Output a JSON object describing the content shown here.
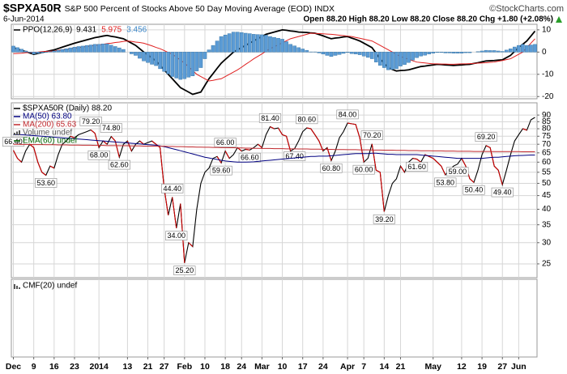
{
  "header": {
    "symbol": "$SPXA50R",
    "description": "S&P 500 Percent of Stocks Above 50 Day Moving Average (EOD) INDX",
    "source": "©StockCharts.com",
    "date": "6-Jun-2014",
    "quote": "Open 88.20 High 88.20 Low 88.20 Close 88.20 Chg +1.80 (+2.08%)"
  },
  "chart_data": [
    {
      "type": "line",
      "title": "PPO(12,26,9)",
      "ylim": [
        -21,
        12.5
      ],
      "yticks": [
        -20,
        -10,
        0,
        10
      ],
      "grid": true,
      "series": [
        {
          "name": "9.431",
          "color": "#000000",
          "style": "line",
          "values": [
            2.0,
            1.4,
            0.8,
            0.2,
            -0.4,
            -1.0,
            -0.6,
            -0.2,
            0.2,
            0.6,
            1.0,
            1.6,
            2.2,
            2.8,
            3.4,
            4.0,
            4.5,
            5.0,
            5.5,
            6.0,
            6.5,
            6.8,
            7.2,
            7.5,
            7.1,
            6.8,
            6.4,
            6.0,
            5.0,
            4.0,
            3.0,
            1.5,
            0.0,
            -1.3,
            -2.7,
            -4.0,
            -6.0,
            -8.0,
            -10.0,
            -12.0,
            -14.0,
            -16.0,
            -17.0,
            -18.0,
            -19.0,
            -18.5,
            -18.0,
            -15.0,
            -12.0,
            -9.7,
            -7.3,
            -5.0,
            -3.3,
            -1.7,
            0.0,
            1.0,
            2.0,
            3.0,
            4.0,
            5.0,
            6.0,
            7.0,
            8.0,
            8.5,
            9.0,
            9.5,
            10.0,
            9.8,
            9.5,
            9.3,
            9.0,
            8.9,
            8.8,
            8.6,
            8.5,
            7.9,
            7.3,
            6.6,
            6.0,
            6.3,
            6.5,
            6.8,
            7.0,
            6.3,
            5.7,
            5.0,
            4.0,
            3.0,
            2.0,
            -0.5,
            -3.0,
            -5.0,
            -7.0,
            -7.8,
            -8.5,
            -8.3,
            -8.2,
            -8.0,
            -7.5,
            -7.0,
            -6.5,
            -6.3,
            -6.0,
            -5.8,
            -5.5,
            -5.6,
            -5.8,
            -5.9,
            -6.0,
            -5.9,
            -5.8,
            -5.6,
            -5.5,
            -5.1,
            -4.8,
            -4.4,
            -4.0,
            -3.9,
            -3.8,
            -3.6,
            -3.5,
            -2.5,
            -1.5,
            0.3,
            2.0,
            3.5,
            5.0,
            7.2,
            9.431
          ]
        },
        {
          "name": "5.975",
          "color": "#e02020",
          "style": "line",
          "values": [
            -0.7,
            -0.6,
            -0.5,
            -0.3,
            -0.2,
            -0.1,
            0.0,
            0.2,
            0.3,
            0.4,
            0.5,
            0.8,
            1.0,
            1.3,
            1.5,
            1.8,
            2.0,
            2.3,
            2.5,
            2.8,
            3.0,
            3.3,
            3.5,
            3.8,
            4.0,
            4.3,
            4.5,
            4.8,
            5.0,
            4.8,
            4.5,
            4.3,
            4.0,
            3.4,
            2.8,
            2.1,
            1.5,
            0.7,
            -0.2,
            -1.0,
            -2.3,
            -3.7,
            -5.0,
            -6.7,
            -8.3,
            -10.0,
            -11.0,
            -12.0,
            -13.0,
            -12.7,
            -12.3,
            -12.0,
            -11.0,
            -10.0,
            -9.0,
            -8.0,
            -6.8,
            -5.5,
            -4.3,
            -3.0,
            -1.9,
            -0.8,
            0.4,
            1.5,
            2.4,
            3.3,
            4.2,
            5.1,
            6.0,
            6.5,
            7.0,
            7.5,
            8.0,
            8.5,
            8.4,
            8.3,
            8.2,
            8.1,
            8.0,
            7.8,
            7.6,
            7.4,
            7.2,
            7.0,
            6.6,
            6.2,
            5.8,
            5.4,
            5.0,
            4.0,
            3.0,
            2.0,
            1.0,
            0.0,
            -1.0,
            -2.0,
            -2.6,
            -3.3,
            -3.9,
            -4.5,
            -4.7,
            -4.9,
            -5.1,
            -5.3,
            -5.3,
            -5.4,
            -5.4,
            -5.5,
            -5.5,
            -5.4,
            -5.3,
            -5.3,
            -5.2,
            -5.1,
            -5.0,
            -4.9,
            -4.8,
            -4.6,
            -4.5,
            -4.1,
            -3.8,
            -3.4,
            -3.0,
            -2.0,
            -1.0,
            0.0,
            2.0,
            4.0,
            5.975
          ]
        },
        {
          "name": "3.456",
          "color": "#5b9bd5",
          "style": "histogram",
          "values": [
            2.7,
            2.0,
            1.3,
            0.5,
            -0.2,
            -0.9,
            -0.6,
            -0.4,
            -0.1,
            0.2,
            0.5,
            0.8,
            1.2,
            1.5,
            1.9,
            2.2,
            2.5,
            2.7,
            3.0,
            3.2,
            3.5,
            3.5,
            3.7,
            3.7,
            3.1,
            2.5,
            1.9,
            1.2,
            0.0,
            -0.8,
            -1.5,
            -2.8,
            -4.0,
            -4.7,
            -5.5,
            -6.1,
            -7.5,
            -8.7,
            -9.8,
            -11.0,
            -11.7,
            -12.3,
            -12.0,
            -11.3,
            -10.7,
            -8.5,
            -7.0,
            -3.0,
            1.0,
            3.0,
            5.0,
            7.0,
            7.7,
            8.3,
            9.0,
            9.0,
            8.8,
            8.5,
            8.3,
            8.0,
            7.9,
            7.8,
            7.6,
            7.0,
            6.6,
            6.2,
            5.8,
            4.7,
            3.5,
            2.8,
            2.0,
            1.4,
            0.8,
            0.1,
            0.1,
            -0.4,
            -0.9,
            -1.5,
            -2.0,
            -1.5,
            -1.1,
            -0.6,
            -0.2,
            -0.7,
            -0.9,
            -1.2,
            -1.8,
            -2.4,
            -3.0,
            -4.5,
            -6.0,
            -7.0,
            -8.0,
            -7.8,
            -7.5,
            -6.3,
            -5.6,
            -4.7,
            -3.6,
            -2.5,
            -1.8,
            -1.4,
            -0.9,
            -0.5,
            -0.2,
            -0.2,
            -0.4,
            -0.4,
            -0.5,
            -0.5,
            -0.5,
            -0.3,
            -0.3,
            0.0,
            0.2,
            0.5,
            0.8,
            0.7,
            0.7,
            0.5,
            0.3,
            0.9,
            1.5,
            2.3,
            3.0,
            3.5,
            3.0,
            3.2,
            3.456
          ]
        }
      ]
    },
    {
      "type": "line",
      "log": true,
      "ylim": [
        22.2,
        100
      ],
      "yticks": [
        25,
        30,
        35,
        40,
        45,
        50,
        55,
        60,
        65,
        70,
        75,
        80,
        85,
        90
      ],
      "grid": true,
      "categories": [
        "Dec",
        null,
        null,
        null,
        null,
        "9",
        null,
        null,
        null,
        null,
        "16",
        null,
        null,
        null,
        null,
        "23",
        null,
        null,
        null,
        null,
        null,
        "2014",
        null,
        null,
        null,
        null,
        null,
        null,
        "13",
        null,
        null,
        null,
        null,
        "21",
        null,
        null,
        null,
        "27",
        null,
        null,
        null,
        null,
        "Feb",
        null,
        null,
        null,
        null,
        "10",
        null,
        null,
        null,
        null,
        "18",
        null,
        null,
        null,
        "24",
        null,
        null,
        null,
        null,
        "Mar",
        null,
        null,
        null,
        null,
        "10",
        null,
        null,
        null,
        null,
        "17",
        null,
        null,
        null,
        null,
        "24",
        null,
        null,
        null,
        null,
        null,
        "Apr",
        null,
        null,
        null,
        "7",
        null,
        null,
        null,
        null,
        "14",
        null,
        null,
        null,
        "21",
        null,
        null,
        null,
        null,
        null,
        null,
        null,
        "May",
        null,
        null,
        null,
        null,
        null,
        null,
        "12",
        null,
        null,
        null,
        null,
        "19",
        null,
        null,
        null,
        null,
        "27",
        null,
        null,
        null,
        "Jun",
        null,
        null,
        null,
        null
      ],
      "series": [
        {
          "name": "$SPXA50R (Daily) 88.20",
          "color": "#000000",
          "down_color": "#d00000",
          "values": [
            66.4,
            62,
            60,
            66,
            70,
            68,
            60,
            55,
            53.6,
            58,
            57,
            64,
            70,
            72,
            75,
            74,
            76,
            77,
            78,
            79.2,
            77,
            68.0,
            72,
            70,
            74.8,
            72,
            62.6,
            70,
            72,
            66,
            70,
            72,
            70,
            71,
            72,
            70,
            68,
            48,
            38,
            44.4,
            34.0,
            42,
            25.2,
            30,
            29,
            40,
            50,
            55,
            57,
            62,
            63,
            59.6,
            66.0,
            62,
            64,
            68,
            66,
            67,
            66.6,
            68,
            70,
            68,
            76,
            81.4,
            80,
            80.5,
            76,
            75,
            66,
            67.4,
            72,
            78,
            80.6,
            80,
            76,
            72,
            66,
            68,
            60.8,
            66,
            74,
            78,
            84,
            83.5,
            83,
            74,
            60,
            62,
            70.2,
            56,
            55,
            39.2,
            45,
            50,
            52,
            58,
            55,
            60,
            62,
            61.6,
            60,
            64,
            63,
            62,
            60,
            58,
            53.8,
            56,
            58,
            59,
            62,
            58,
            52,
            50.4,
            56,
            64,
            69.2,
            68,
            58,
            56,
            49.4,
            56,
            64,
            72,
            76,
            80,
            79,
            86.4,
            88.2
          ],
          "value_labels": [
            "66.40",
            null,
            null,
            null,
            null,
            null,
            null,
            null,
            "53.60",
            null,
            null,
            null,
            null,
            null,
            null,
            null,
            null,
            null,
            null,
            "79.20",
            null,
            "68.00",
            null,
            null,
            "74.80",
            null,
            "62.60",
            null,
            null,
            null,
            null,
            null,
            null,
            null,
            null,
            null,
            null,
            null,
            null,
            "44.40",
            "34.00",
            null,
            "25.20",
            null,
            null,
            null,
            null,
            null,
            null,
            null,
            null,
            "59.60",
            "66.00",
            null,
            null,
            null,
            null,
            null,
            "66.60",
            null,
            null,
            null,
            null,
            "81.40",
            null,
            null,
            null,
            null,
            null,
            "67.40",
            null,
            null,
            "80.60",
            null,
            null,
            null,
            null,
            null,
            "60.80",
            null,
            null,
            null,
            "84.00",
            null,
            null,
            null,
            "60.00",
            null,
            "70.20",
            null,
            null,
            "39.20",
            null,
            null,
            null,
            null,
            null,
            null,
            null,
            "61.60",
            null,
            null,
            null,
            null,
            null,
            null,
            "53.80",
            null,
            null,
            "59.00",
            null,
            null,
            null,
            "50.40",
            null,
            null,
            "69.20",
            null,
            null,
            null,
            "49.40",
            null,
            null,
            null,
            null,
            null,
            null,
            null,
            null
          ]
        },
        {
          "name": "MA(50) 63.80",
          "color": "#000080",
          "values": [
            76,
            76,
            76,
            75.8,
            75.6,
            75.4,
            75.2,
            75,
            74.8,
            74.6,
            74.4,
            74.2,
            74,
            73.8,
            73.6,
            73.4,
            73.2,
            73,
            72.8,
            72.6,
            72.4,
            72.2,
            72,
            71.8,
            71.6,
            71.4,
            71.2,
            71,
            70.8,
            70.6,
            70.4,
            70.2,
            70,
            69.8,
            69.6,
            69.4,
            69,
            68.6,
            68,
            67.4,
            66.8,
            66.2,
            65.6,
            65,
            64.4,
            63.8,
            63.2,
            62.6,
            62.2,
            61.8,
            61.4,
            61,
            60.6,
            60.4,
            60.2,
            60,
            60,
            60,
            60.1,
            60.2,
            60.4,
            60.6,
            60.8,
            61,
            61.2,
            61.4,
            61.6,
            61.8,
            62,
            62.2,
            62.4,
            62.6,
            62.8,
            63,
            63,
            63.2,
            63.2,
            63.2,
            63.4,
            63.6,
            63.8,
            64,
            64.2,
            64.4,
            64.6,
            64.6,
            64.6,
            64.6,
            64.8,
            64.8,
            64.6,
            64.4,
            64.2,
            64.2,
            64,
            64,
            64,
            64,
            64,
            64,
            63.8,
            63.6,
            63.4,
            63.2,
            63,
            62.8,
            62.6,
            62.4,
            62.2,
            62,
            62,
            62,
            62,
            62,
            62,
            62,
            62.2,
            62.4,
            62.6,
            62.6,
            62.8,
            63,
            63.2,
            63.4,
            63.5,
            63.6,
            63.7,
            63.8,
            63.8
          ]
        },
        {
          "name": "MA(200) 65.63",
          "color": "#c0282d",
          "values": [
            70.0,
            70.0,
            69.9,
            69.9,
            69.9,
            69.8,
            69.8,
            69.8,
            69.7,
            69.7,
            69.7,
            69.6,
            69.6,
            69.6,
            69.5,
            69.5,
            69.5,
            69.4,
            69.4,
            69.4,
            69.3,
            69.3,
            69.3,
            69.2,
            69.2,
            69.2,
            69.1,
            69.1,
            69.1,
            69.0,
            69.0,
            69.0,
            68.9,
            68.9,
            68.9,
            68.8,
            68.8,
            68.8,
            68.7,
            68.7,
            68.6,
            68.6,
            68.5,
            68.4,
            68.4,
            68.3,
            68.3,
            68.2,
            68.2,
            68.1,
            68.1,
            68.0,
            68.0,
            67.9,
            67.9,
            67.8,
            67.8,
            67.7,
            67.7,
            67.6,
            67.6,
            67.5,
            67.5,
            67.5,
            67.4,
            67.4,
            67.4,
            67.3,
            67.3,
            67.3,
            67.2,
            67.2,
            67.2,
            67.1,
            67.1,
            67.1,
            67.0,
            67.0,
            67.0,
            66.9,
            66.9,
            66.9,
            66.8,
            66.8,
            66.8,
            66.7,
            66.7,
            66.7,
            66.6,
            66.6,
            66.6,
            66.5,
            66.5,
            66.5,
            66.4,
            66.4,
            66.4,
            66.3,
            66.3,
            66.3,
            66.2,
            66.2,
            66.2,
            66.1,
            66.1,
            66.1,
            66.0,
            66.0,
            66.0,
            65.9,
            65.9,
            65.9,
            65.9,
            65.8,
            65.8,
            65.8,
            65.8,
            65.8,
            65.7,
            65.7,
            65.7,
            65.7,
            65.7,
            65.7,
            65.7,
            65.6,
            65.6,
            65.6,
            65.63
          ]
        }
      ],
      "extra_legend": [
        {
          "name": "Volume undef",
          "color": "#555555"
        },
        {
          "name": "EMA(60) undef",
          "color": "#006400"
        }
      ]
    },
    {
      "type": "line",
      "title": "CMF(20) undef",
      "color": "#555555"
    }
  ]
}
